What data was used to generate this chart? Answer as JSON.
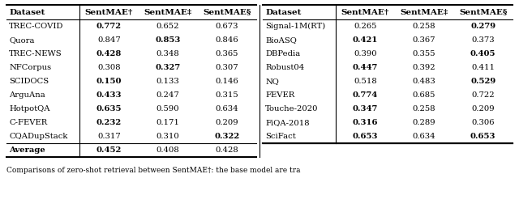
{
  "left_headers": [
    "Dataset",
    "SentMAE†",
    "SentMAE‡",
    "SentMAE§"
  ],
  "right_headers": [
    "Dataset",
    "SentMAE†",
    "SentMAE‡",
    "SentMAE§"
  ],
  "left_rows": [
    [
      "TREC-COVID",
      "0.772",
      "0.652",
      "0.673"
    ],
    [
      "Quora",
      "0.847",
      "0.853",
      "0.846"
    ],
    [
      "TREC-NEWS",
      "0.428",
      "0.348",
      "0.365"
    ],
    [
      "NFCorpus",
      "0.308",
      "0.327",
      "0.307"
    ],
    [
      "SCIDOCS",
      "0.150",
      "0.133",
      "0.146"
    ],
    [
      "ArguAna",
      "0.433",
      "0.247",
      "0.315"
    ],
    [
      "HotpotQA",
      "0.635",
      "0.590",
      "0.634"
    ],
    [
      "C-FEVER",
      "0.232",
      "0.171",
      "0.209"
    ],
    [
      "CQADupStack",
      "0.317",
      "0.310",
      "0.322"
    ]
  ],
  "right_rows": [
    [
      "Signal-1M(RT)",
      "0.265",
      "0.258",
      "0.279"
    ],
    [
      "BioASQ",
      "0.421",
      "0.367",
      "0.373"
    ],
    [
      "DBPedia",
      "0.390",
      "0.355",
      "0.405"
    ],
    [
      "Robust04",
      "0.447",
      "0.392",
      "0.411"
    ],
    [
      "NQ",
      "0.518",
      "0.483",
      "0.529"
    ],
    [
      "FEVER",
      "0.774",
      "0.685",
      "0.722"
    ],
    [
      "Touche-2020",
      "0.347",
      "0.258",
      "0.209"
    ],
    [
      "FiQA-2018",
      "0.316",
      "0.289",
      "0.306"
    ],
    [
      "SciFact",
      "0.653",
      "0.634",
      "0.653"
    ]
  ],
  "avg_row": [
    "Average",
    "0.452",
    "0.408",
    "0.428"
  ],
  "left_bold": [
    [
      true,
      false,
      false
    ],
    [
      false,
      true,
      false
    ],
    [
      true,
      false,
      false
    ],
    [
      false,
      true,
      false
    ],
    [
      true,
      false,
      false
    ],
    [
      true,
      false,
      false
    ],
    [
      true,
      false,
      false
    ],
    [
      true,
      false,
      false
    ],
    [
      false,
      false,
      true
    ]
  ],
  "right_bold": [
    [
      false,
      false,
      true
    ],
    [
      true,
      false,
      false
    ],
    [
      false,
      false,
      true
    ],
    [
      true,
      false,
      false
    ],
    [
      false,
      false,
      true
    ],
    [
      true,
      false,
      false
    ],
    [
      true,
      false,
      false
    ],
    [
      true,
      false,
      false
    ],
    [
      true,
      false,
      true
    ]
  ],
  "avg_bold": [
    true,
    false,
    false
  ],
  "caption": "Comparisons of zero-shot retrieval between SentMAE†: the base model are tra",
  "figsize": [
    6.4,
    2.57
  ],
  "dpi": 100
}
